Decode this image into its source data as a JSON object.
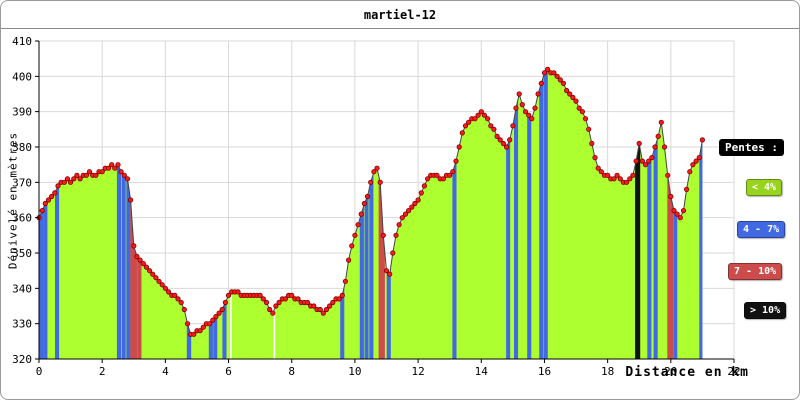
{
  "title": "martiel-12",
  "legend": {
    "header": "Pentes :",
    "items": [
      {
        "label": "< 4%",
        "color": "#98D41E"
      },
      {
        "label": "4 - 7%",
        "color": "#4169E1"
      },
      {
        "label": "7 - 10%",
        "color": "#CC4C4C"
      },
      {
        "label": "> 10%",
        "color": "#111111"
      }
    ]
  },
  "chart_data": {
    "type": "area",
    "title": "martiel-12",
    "xlabel": "Distance en km",
    "ylabel": "Dénivelé en mètres",
    "xlim": [
      0,
      22
    ],
    "ylim": [
      320,
      410
    ],
    "xticks": [
      0,
      2,
      4,
      6,
      8,
      10,
      12,
      14,
      16,
      18,
      20,
      22
    ],
    "yticks": [
      320,
      330,
      340,
      350,
      360,
      370,
      380,
      390,
      400,
      410
    ],
    "grid": true,
    "legend_position": "right",
    "colors": {
      "fill": "#ADFF2F",
      "line": "#444444",
      "dot": "#FF1A1A",
      "dot_stroke": "#7A0000",
      "grid": "#D8D8D8",
      "axis": "#000000",
      "bar": {
        "4-7": "#4169E1",
        "7-10": "#CC4C4C",
        ">10": "#111111"
      }
    },
    "profile": {
      "x0": 0,
      "dx": 0.1,
      "values": [
        360,
        362,
        364,
        365,
        366,
        367,
        369,
        370,
        370,
        371,
        370,
        371,
        372,
        371,
        372,
        372,
        373,
        372,
        372,
        373,
        373,
        374,
        374,
        375,
        374,
        375,
        373,
        372,
        371,
        365,
        352,
        349,
        348,
        347,
        346,
        345,
        344,
        343,
        342,
        341,
        340,
        339,
        338,
        338,
        337,
        336,
        334,
        330,
        327,
        327,
        328,
        328,
        329,
        330,
        330,
        331,
        332,
        333,
        334,
        336,
        338,
        339,
        339,
        339,
        338,
        338,
        338,
        338,
        338,
        338,
        338,
        337,
        336,
        334,
        333,
        335,
        336,
        337,
        337,
        338,
        338,
        337,
        337,
        336,
        336,
        336,
        335,
        335,
        334,
        334,
        333,
        334,
        335,
        336,
        337,
        337,
        338,
        342,
        348,
        352,
        355,
        358,
        361,
        364,
        366,
        370,
        373,
        374,
        370,
        355,
        345,
        344,
        350,
        355,
        358,
        360,
        361,
        362,
        363,
        364,
        365,
        367,
        369,
        371,
        372,
        372,
        372,
        371,
        371,
        372,
        372,
        373,
        376,
        380,
        384,
        386,
        387,
        388,
        388,
        389,
        390,
        389,
        388,
        386,
        385,
        383,
        382,
        381,
        380,
        382,
        386,
        391,
        395,
        392,
        390,
        389,
        388,
        391,
        395,
        398,
        401,
        402,
        401,
        401,
        400,
        399,
        398,
        396,
        395,
        394,
        393,
        391,
        390,
        388,
        385,
        381,
        377,
        374,
        373,
        372,
        372,
        371,
        371,
        372,
        371,
        370,
        370,
        371,
        372,
        376,
        381,
        376,
        375,
        376,
        377,
        380,
        383,
        387,
        380,
        372,
        366,
        362,
        361,
        360,
        362,
        368,
        373,
        375,
        376,
        377,
        382
      ]
    },
    "slope_bars": [
      {
        "x": 0.07,
        "w": 0.13,
        "cat": "4-7"
      },
      {
        "x": 0.2,
        "w": 0.13,
        "cat": "4-7"
      },
      {
        "x": 0.57,
        "w": 0.13,
        "cat": "4-7"
      },
      {
        "x": 2.53,
        "w": 0.13,
        "cat": "4-7"
      },
      {
        "x": 2.68,
        "w": 0.13,
        "cat": "4-7"
      },
      {
        "x": 2.83,
        "w": 0.13,
        "cat": "4-7"
      },
      {
        "x": 3.0,
        "w": 0.22,
        "cat": "7-10"
      },
      {
        "x": 3.18,
        "w": 0.13,
        "cat": "7-10"
      },
      {
        "x": 4.75,
        "w": 0.14,
        "cat": "4-7"
      },
      {
        "x": 5.44,
        "w": 0.13,
        "cat": "4-7"
      },
      {
        "x": 5.58,
        "w": 0.13,
        "cat": "4-7"
      },
      {
        "x": 5.87,
        "w": 0.13,
        "cat": "4-7"
      },
      {
        "x": 9.6,
        "w": 0.13,
        "cat": "4-7"
      },
      {
        "x": 10.22,
        "w": 0.13,
        "cat": "4-7"
      },
      {
        "x": 10.37,
        "w": 0.13,
        "cat": "4-7"
      },
      {
        "x": 10.52,
        "w": 0.13,
        "cat": "4-7"
      },
      {
        "x": 10.85,
        "w": 0.2,
        "cat": "7-10"
      },
      {
        "x": 11.07,
        "w": 0.13,
        "cat": "4-7"
      },
      {
        "x": 13.15,
        "w": 0.13,
        "cat": "4-7"
      },
      {
        "x": 14.85,
        "w": 0.13,
        "cat": "4-7"
      },
      {
        "x": 15.1,
        "w": 0.13,
        "cat": "4-7"
      },
      {
        "x": 15.52,
        "w": 0.13,
        "cat": "4-7"
      },
      {
        "x": 15.9,
        "w": 0.13,
        "cat": "4-7"
      },
      {
        "x": 16.04,
        "w": 0.13,
        "cat": "4-7"
      },
      {
        "x": 18.95,
        "w": 0.16,
        "cat": ">10"
      },
      {
        "x": 19.32,
        "w": 0.13,
        "cat": "4-7"
      },
      {
        "x": 19.52,
        "w": 0.13,
        "cat": "4-7"
      },
      {
        "x": 19.98,
        "w": 0.18,
        "cat": "7-10"
      },
      {
        "x": 20.14,
        "w": 0.13,
        "cat": "4-7"
      },
      {
        "x": 20.97,
        "w": 0.14,
        "cat": "4-7"
      },
      {
        "x": 21.05,
        "w": 0.1,
        "cat": "4-7"
      }
    ],
    "gaps": [
      6.07,
      7.45
    ]
  }
}
